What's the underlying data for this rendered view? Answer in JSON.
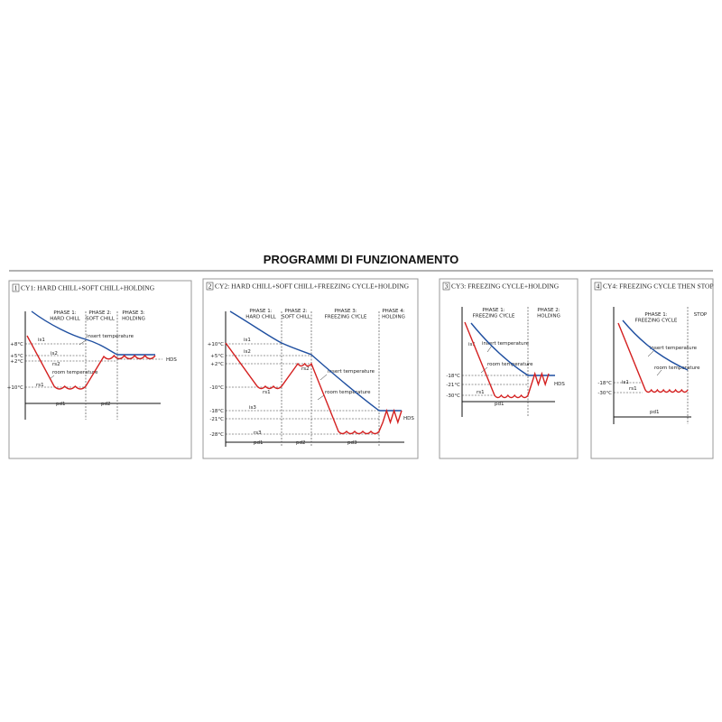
{
  "title": "PROGRAMMI DI FUNZIONAMENTO",
  "panels": [
    {
      "number": "1",
      "title": "CY1: HARD CHILL+SOFT CHILL+HOLDING",
      "phases": [
        [
          "PHASE 1:",
          "HARD CHILL"
        ],
        [
          "PHASE 2:",
          "SOFT CHILL"
        ],
        [
          "PHASE 3:",
          "HOLDING"
        ]
      ],
      "temperatures": [
        "+8°C",
        "+5°C",
        "+2°C",
        "+10°C"
      ],
      "labels": [
        "is1",
        "is2",
        "rs2",
        "rs1",
        "insert temperature",
        "room temperature",
        "HDS",
        "pd1",
        "pd2"
      ]
    },
    {
      "number": "2",
      "title": "CY2: HARD CHILL+SOFT CHILL+FREEZING CYCLE+HOLDING",
      "phases": [
        [
          "PHASE 1:",
          "HARD CHILL"
        ],
        [
          "PHASE 2:",
          "SOFT CHILL"
        ],
        [
          "PHASE 3:",
          "FREEZING CYCLE"
        ],
        [
          "PHASE 4:",
          "HOLDING"
        ]
      ],
      "temperatures": [
        "+10°C",
        "+5°C",
        "+2°C",
        "-10°C",
        "-18°C",
        "-21°C",
        "-28°C"
      ],
      "labels": [
        "is1",
        "is2",
        "rs2",
        "rs1",
        "is3",
        "rs3",
        "insert temperature",
        "room temperature",
        "HDS",
        "pd1",
        "pd2",
        "pd3"
      ]
    },
    {
      "number": "3",
      "title": "CY3: FREEZING CYCLE+HOLDING",
      "phases": [
        [
          "PHASE 1:",
          "FREEZING CYCLE"
        ],
        [
          "PHASE 2:",
          "HOLDING"
        ]
      ],
      "temperatures": [
        "-18°C",
        "-21°C",
        "-30°C"
      ],
      "labels": [
        "is1",
        "rs1",
        "insert temperature",
        "room temperature",
        "HDS",
        "pd1"
      ]
    },
    {
      "number": "4",
      "title": "CY4: FREEZING CYCLE THEN STOP",
      "phases": [
        [
          "PHASE 1:",
          "FREEZING CYCLE"
        ],
        [
          "STOP"
        ]
      ],
      "temperatures": [
        "-18°C",
        "-30°C"
      ],
      "labels": [
        "is1",
        "rs1",
        "insert temperature",
        "room temperature",
        "pd1"
      ]
    }
  ]
}
